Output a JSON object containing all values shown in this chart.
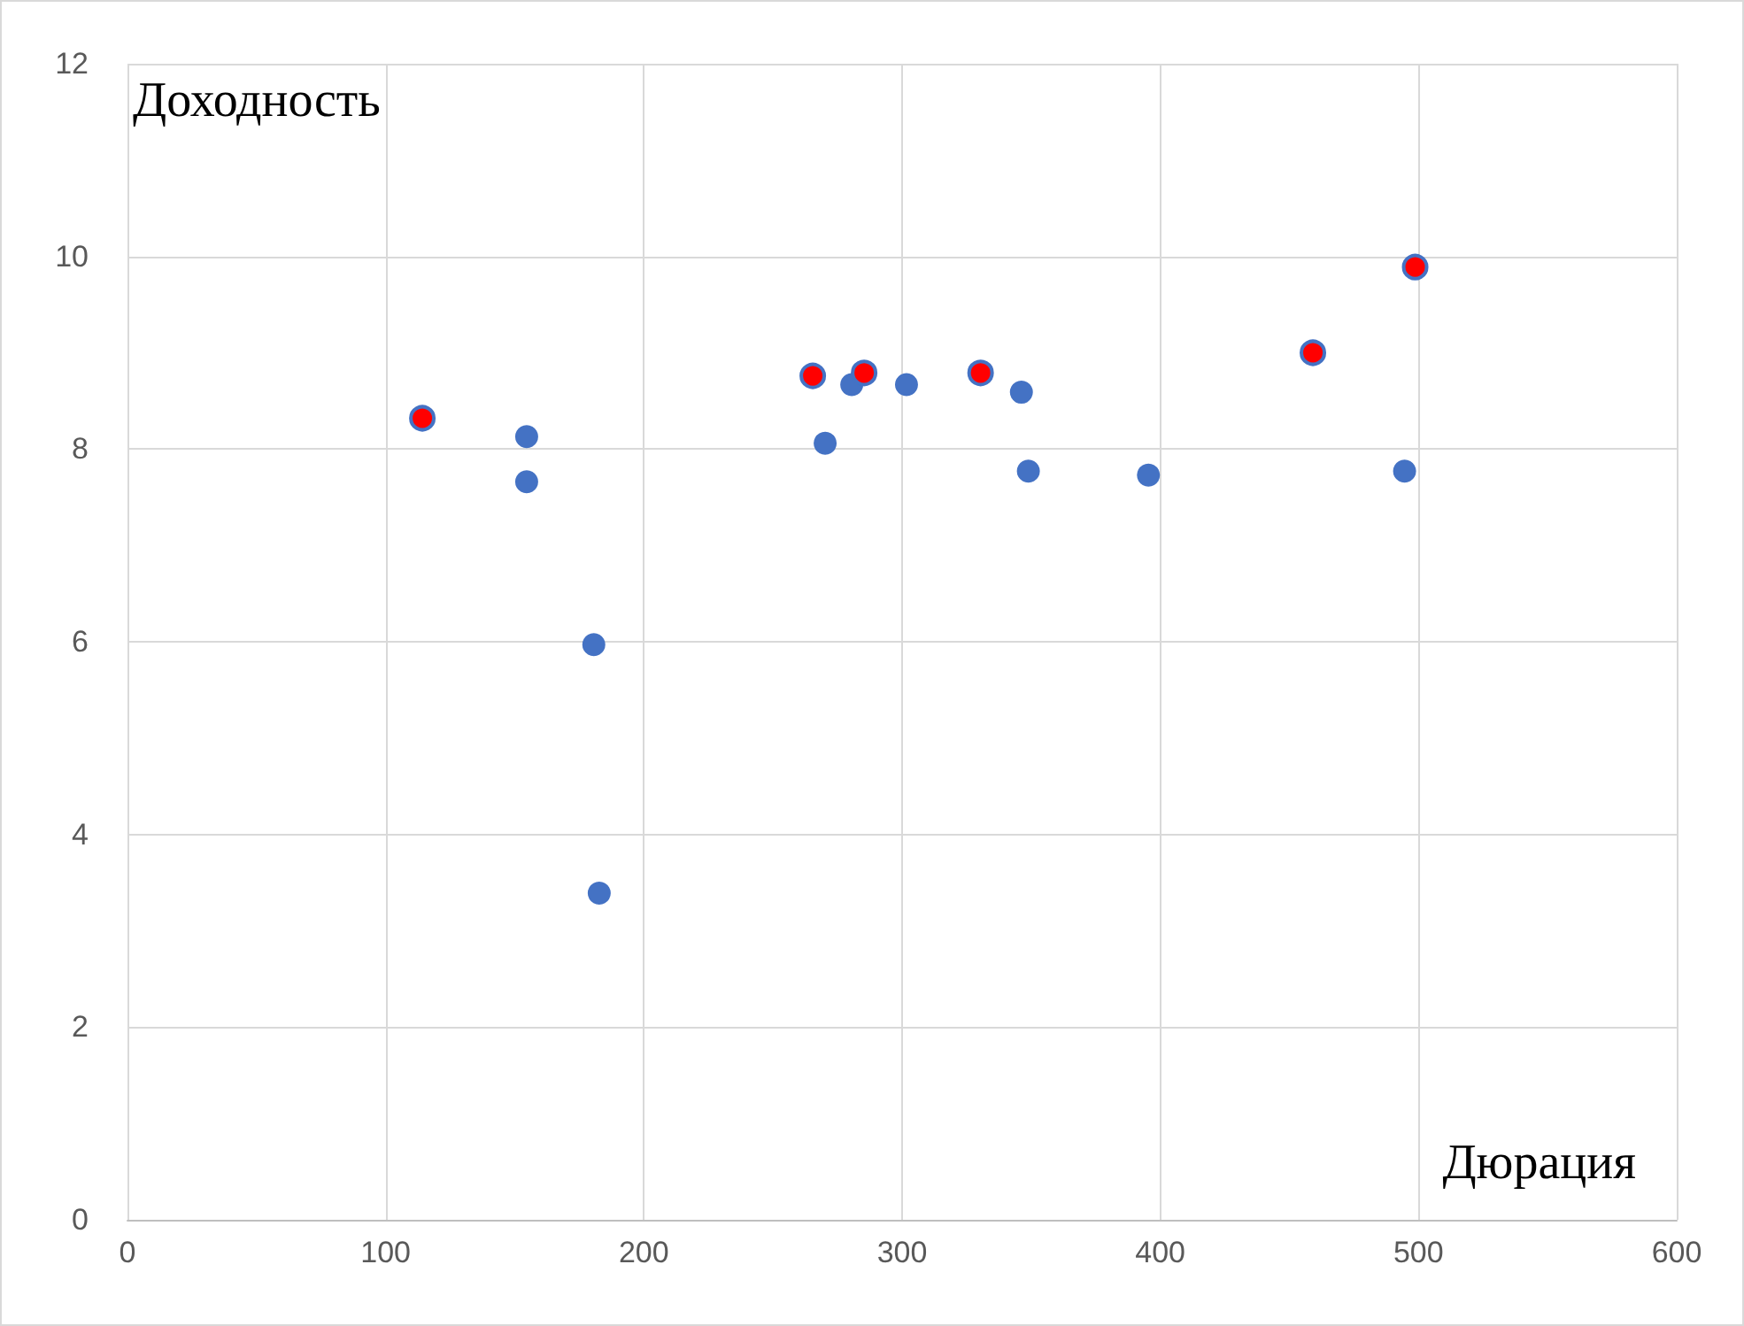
{
  "chart_data": {
    "type": "scatter",
    "xlabel": "Дюрация",
    "ylabel": "Доходность",
    "xlim": [
      0,
      600
    ],
    "xticks": [
      0,
      100,
      200,
      300,
      400,
      500,
      600
    ],
    "ylim": [
      0,
      12
    ],
    "yticks": [
      0,
      2,
      4,
      6,
      8,
      10,
      12
    ],
    "grid": true,
    "marker": "circle",
    "series": [
      {
        "color": "#4472c4",
        "x": [
          154.6,
          154.6,
          180.6,
          182.7,
          270.2,
          280.5,
          301.7,
          346.2,
          348.9,
          395.4,
          494.6
        ],
        "values": [
          8.13,
          7.66,
          5.97,
          3.39,
          8.06,
          8.67,
          8.67,
          8.59,
          7.77,
          7.73,
          7.77
        ]
      },
      {
        "color": "#ff0000",
        "x": [
          114.2,
          265.4,
          285.3,
          330.4,
          459.1,
          498.7
        ],
        "values": [
          8.32,
          8.76,
          8.79,
          8.79,
          9.0,
          9.89
        ]
      }
    ]
  }
}
